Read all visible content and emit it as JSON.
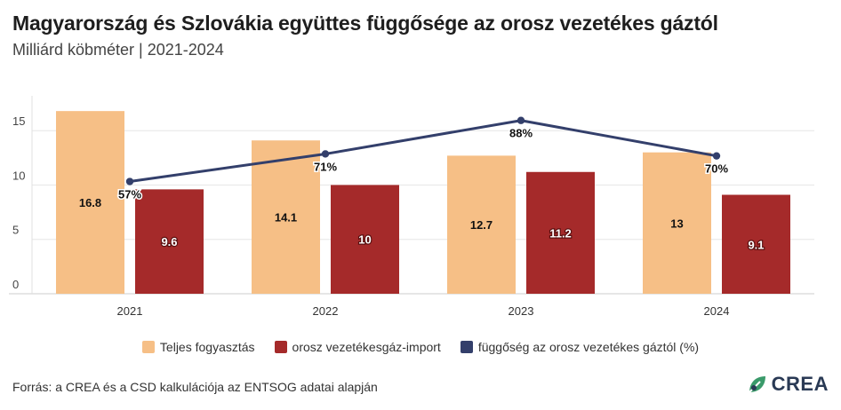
{
  "header": {
    "title": "Magyarország és Szlovákia együttes függősége az orosz vezetékes gáztól",
    "subtitle": "Milliárd köbméter | 2021-2024"
  },
  "footer": {
    "source": "Forrás: a CREA és a CSD kalkulációja az ENTSOG adatai alapján",
    "logo_text": "CREA"
  },
  "colors": {
    "total": "#f6bf86",
    "import": "#a52a2a",
    "dependence": "#333f6b",
    "grid": "#e6e6e6"
  },
  "chart_data": {
    "type": "bar",
    "categories": [
      "2021",
      "2022",
      "2023",
      "2024"
    ],
    "y_ticks": [
      "0",
      "5",
      "10",
      "15"
    ],
    "ylim": [
      0,
      18.2
    ],
    "series": [
      {
        "name": "Teljes fogyasztás",
        "type": "bar",
        "values": [
          16.8,
          14.1,
          12.7,
          13
        ],
        "labels": [
          "16.8",
          "14.1",
          "12.7",
          "13"
        ]
      },
      {
        "name": "orosz vezetékesgáz-import",
        "type": "bar",
        "values": [
          9.6,
          10,
          11.2,
          9.1
        ],
        "labels": [
          "9.6",
          "10",
          "11.2",
          "9.1"
        ]
      },
      {
        "name": "függőség az orosz vezetékes gáztól (%)",
        "type": "line",
        "values": [
          57,
          71,
          88,
          70
        ],
        "labels": [
          "57%",
          "71%",
          "88%",
          "70%"
        ],
        "ylim": [
          0,
          100.5
        ]
      }
    ],
    "grid": true,
    "legend": "bottom-center"
  }
}
